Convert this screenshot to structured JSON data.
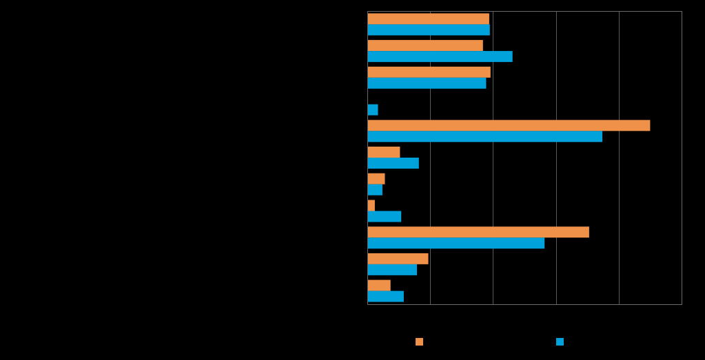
{
  "chart_data": {
    "type": "bar",
    "orientation": "horizontal",
    "categories": [
      "",
      "",
      "",
      "",
      "",
      "",
      "",
      "",
      "",
      "",
      ""
    ],
    "series": [
      {
        "color": "#F0914A",
        "values": [
          19.4,
          18.4,
          19.6,
          0,
          45.0,
          5.2,
          2.8,
          1.2,
          35.3,
          9.7,
          3.7
        ]
      },
      {
        "color": "#00A2DB",
        "values": [
          19.5,
          23.1,
          18.9,
          1.7,
          37.4,
          8.2,
          2.4,
          5.4,
          28.2,
          7.9,
          5.8
        ]
      }
    ],
    "xlim": [
      0,
      50
    ],
    "x_gridlines": [
      10,
      20,
      30,
      40
    ],
    "grid": true,
    "legend_position": "bottom",
    "title": "",
    "xlabel": "",
    "ylabel": ""
  }
}
